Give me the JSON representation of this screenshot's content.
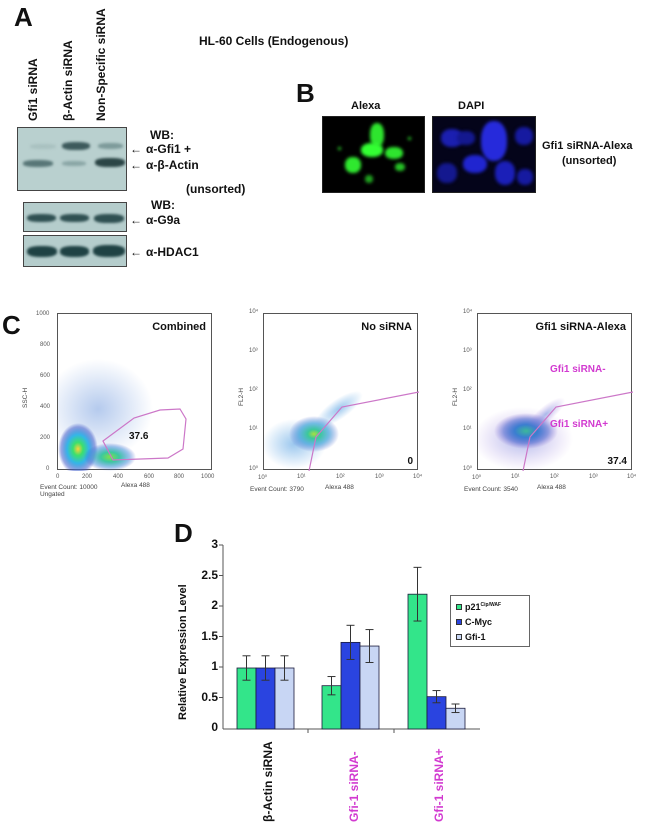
{
  "panel_A": {
    "letter": "A",
    "title": "HL-60 Cells (Endogenous)",
    "lanes": [
      "Gfi1 siRNA",
      "β-Actin siRNA",
      "Non-Specific siRNA"
    ],
    "blot1": {
      "wb_label": "WB:",
      "bands": [
        "α-Gfi1 +",
        "α-β-Actin"
      ],
      "note": "(unsorted)"
    },
    "blot2": {
      "wb_label": "WB:",
      "bands": [
        "α-G9a"
      ]
    },
    "blot3": {
      "bands": [
        "α-HDAC1"
      ]
    },
    "arrow": "←"
  },
  "panel_B": {
    "letter": "B",
    "images": [
      "Alexa",
      "DAPI"
    ],
    "caption_line1": "Gfi1 siRNA-Alexa",
    "caption_line2": "(unsorted)"
  },
  "panel_C": {
    "letter": "C",
    "plots": [
      {
        "title": "Combined",
        "ylabel": "SSC-H",
        "xlabel": "Alexa 488",
        "y_ticks": [
          "1000",
          "800",
          "600",
          "400",
          "200",
          "0"
        ],
        "x_ticks": [
          "0",
          "200",
          "400",
          "600",
          "800",
          "1000"
        ],
        "gate_value": "37.6",
        "event_count": "Event Count: 10000",
        "gating": "Ungated"
      },
      {
        "title": "No siRNA",
        "ylabel": "FL2-H",
        "xlabel": "Alexa 488",
        "y_ticks": [
          "10⁴",
          "10³",
          "10²",
          "10¹",
          "10⁰"
        ],
        "x_ticks": [
          "10⁰",
          "10¹",
          "10²",
          "10³",
          "10⁴"
        ],
        "gate_value": "0",
        "event_count": "Event Count: 3790"
      },
      {
        "title": "Gfi1 siRNA-Alexa",
        "ylabel": "FL2-H",
        "xlabel": "Alexa 488",
        "y_ticks": [
          "10⁴",
          "10³",
          "10²",
          "10¹",
          "10⁰"
        ],
        "x_ticks": [
          "10⁰",
          "10¹",
          "10²",
          "10³",
          "10⁴"
        ],
        "gate_value": "37.4",
        "event_count": "Event Count: 3540",
        "label_minus": "Gfi1 siRNA-",
        "label_plus": "Gfi1 siRNA+"
      }
    ]
  },
  "panel_D": {
    "letter": "D"
  },
  "colors": {
    "green": "#33e58a",
    "blue": "#2a44e0",
    "light_blue": "#c8d6f4",
    "magenta": "#d23ad0",
    "gate": "#cc77c8"
  },
  "chart_data": {
    "type": "bar",
    "title": "",
    "xlabel": "",
    "ylabel": "Relative Expression Level",
    "ylim": [
      0,
      3
    ],
    "y_ticks": [
      "0",
      "0.5",
      "1",
      "1.5",
      "2",
      "2.5",
      "3"
    ],
    "categories": [
      "β-Actin siRNA",
      "Gfi-1 siRNA-",
      "Gfi-1 siRNA+"
    ],
    "category_colors": [
      "#111111",
      "#d23ad0",
      "#d23ad0"
    ],
    "series": [
      {
        "name": "p21Cip/WAF",
        "legend_label": "p21",
        "legend_sup": "Cip/WAF",
        "color": "#33e58a",
        "values": [
          1.0,
          0.71,
          2.21
        ],
        "errors": [
          0.2,
          0.15,
          0.44
        ]
      },
      {
        "name": "C-Myc",
        "legend_label": "C-Myc",
        "legend_sup": "",
        "color": "#2a44e0",
        "values": [
          1.0,
          1.42,
          0.53
        ],
        "errors": [
          0.2,
          0.28,
          0.1
        ]
      },
      {
        "name": "Gfi-1",
        "legend_label": "Gfi-1",
        "legend_sup": "",
        "color": "#c8d6f4",
        "values": [
          1.0,
          1.36,
          0.34
        ],
        "errors": [
          0.2,
          0.27,
          0.07
        ]
      }
    ],
    "legend_position": "right",
    "grid": false
  }
}
